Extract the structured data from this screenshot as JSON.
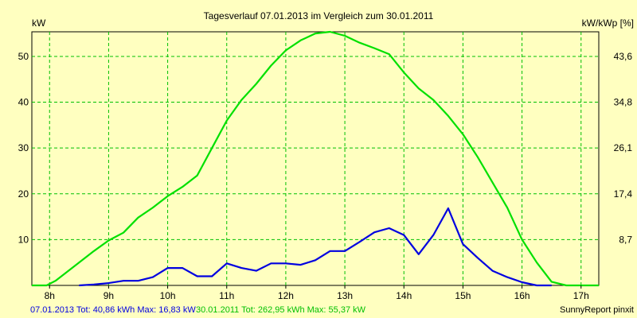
{
  "chart_data": {
    "type": "line",
    "title": "Tagesverlauf 07.01.2013 im Vergleich zum 30.01.2011",
    "ylabel_left": "kW",
    "ylabel_right": "kW/kWp [%]",
    "xlim": [
      7.7,
      17.3
    ],
    "ylim": [
      0,
      55.37
    ],
    "grid": true,
    "x_ticks": [
      {
        "v": 8,
        "label": "8h"
      },
      {
        "v": 9,
        "label": "9h"
      },
      {
        "v": 10,
        "label": "10h"
      },
      {
        "v": 11,
        "label": "11h"
      },
      {
        "v": 12,
        "label": "12h"
      },
      {
        "v": 13,
        "label": "13h"
      },
      {
        "v": 14,
        "label": "14h"
      },
      {
        "v": 15,
        "label": "15h"
      },
      {
        "v": 16,
        "label": "16h"
      },
      {
        "v": 17,
        "label": "17h"
      }
    ],
    "y_ticks_left": [
      {
        "v": 10,
        "label": "10"
      },
      {
        "v": 20,
        "label": "20"
      },
      {
        "v": 30,
        "label": "30"
      },
      {
        "v": 40,
        "label": "40"
      },
      {
        "v": 50,
        "label": "50"
      }
    ],
    "y_ticks_right": [
      {
        "v": 10,
        "label": "8,7"
      },
      {
        "v": 20,
        "label": "17,4"
      },
      {
        "v": 30,
        "label": "26,1"
      },
      {
        "v": 40,
        "label": "34,8"
      },
      {
        "v": 50,
        "label": "43,6"
      }
    ],
    "series": [
      {
        "name": "30.01.2011",
        "color": "#00e000",
        "points": [
          [
            7.7,
            0
          ],
          [
            7.95,
            0
          ],
          [
            8.1,
            1
          ],
          [
            8.25,
            2.5
          ],
          [
            8.5,
            5
          ],
          [
            8.75,
            7.5
          ],
          [
            9.0,
            9.8
          ],
          [
            9.25,
            11.5
          ],
          [
            9.5,
            14.8
          ],
          [
            9.75,
            17
          ],
          [
            10.0,
            19.5
          ],
          [
            10.25,
            21.5
          ],
          [
            10.5,
            24
          ],
          [
            10.75,
            30
          ],
          [
            11.0,
            36
          ],
          [
            11.25,
            40.5
          ],
          [
            11.5,
            44
          ],
          [
            11.75,
            48
          ],
          [
            12.0,
            51.3
          ],
          [
            12.25,
            53.5
          ],
          [
            12.5,
            55.0
          ],
          [
            12.75,
            55.37
          ],
          [
            13.0,
            54.5
          ],
          [
            13.25,
            53
          ],
          [
            13.5,
            51.8
          ],
          [
            13.75,
            50.5
          ],
          [
            14.0,
            46.5
          ],
          [
            14.25,
            43
          ],
          [
            14.5,
            40.5
          ],
          [
            14.75,
            37
          ],
          [
            15.0,
            33
          ],
          [
            15.25,
            28
          ],
          [
            15.5,
            22.5
          ],
          [
            15.75,
            17
          ],
          [
            16.0,
            10
          ],
          [
            16.25,
            5
          ],
          [
            16.5,
            0.8
          ],
          [
            16.75,
            0
          ],
          [
            17.3,
            0
          ]
        ]
      },
      {
        "name": "07.01.2013",
        "color": "#0000e0",
        "points": [
          [
            8.5,
            0
          ],
          [
            8.75,
            0.2
          ],
          [
            9.0,
            0.5
          ],
          [
            9.25,
            1
          ],
          [
            9.5,
            1
          ],
          [
            9.75,
            1.8
          ],
          [
            10.0,
            3.8
          ],
          [
            10.25,
            3.8
          ],
          [
            10.5,
            2
          ],
          [
            10.75,
            2
          ],
          [
            11.0,
            4.8
          ],
          [
            11.25,
            3.8
          ],
          [
            11.5,
            3.2
          ],
          [
            11.75,
            4.8
          ],
          [
            12.0,
            4.8
          ],
          [
            12.25,
            4.5
          ],
          [
            12.5,
            5.5
          ],
          [
            12.75,
            7.5
          ],
          [
            13.0,
            7.5
          ],
          [
            13.25,
            9.5
          ],
          [
            13.5,
            11.6
          ],
          [
            13.75,
            12.5
          ],
          [
            14.0,
            11
          ],
          [
            14.25,
            6.8
          ],
          [
            14.5,
            11
          ],
          [
            14.75,
            16.83
          ],
          [
            15.0,
            9
          ],
          [
            15.25,
            6
          ],
          [
            15.5,
            3.2
          ],
          [
            15.75,
            1.8
          ],
          [
            16.0,
            0.7
          ],
          [
            16.25,
            0
          ],
          [
            16.5,
            0
          ]
        ]
      }
    ],
    "legend": [
      {
        "text": "07.01.2013 Tot: 40,86 kWh Max: 16,83 kW",
        "color": "#0000e0"
      },
      {
        "text": "30.01.2011 Tot: 262,95 kWh Max: 55,37 kW",
        "color": "#00c000"
      }
    ],
    "footer": "SunnyReport pinxit"
  }
}
